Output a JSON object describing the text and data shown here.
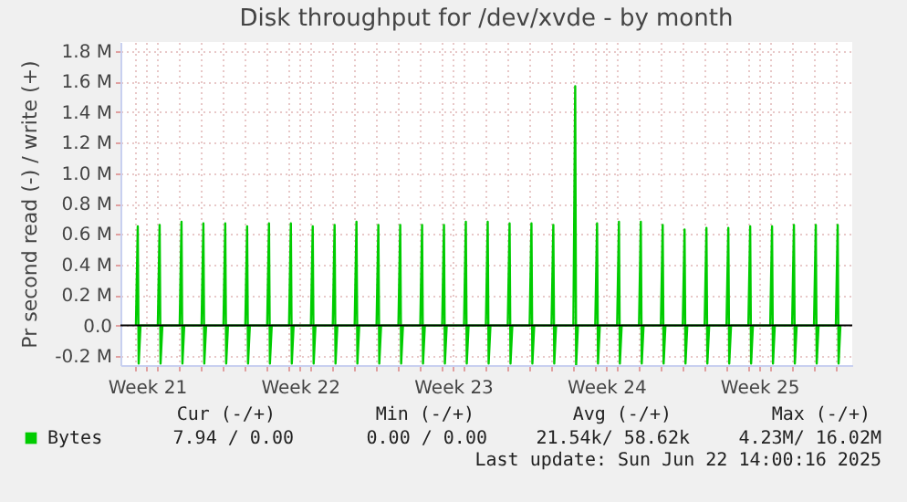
{
  "chart_data": {
    "type": "line",
    "title": "Disk throughput for /dev/xvde - by month",
    "ylabel": "Pr second read (-) / write (+)",
    "xlim": [
      "2025-05-21T07:00",
      "2025-06-23T18:00"
    ],
    "ylim": [
      -260000,
      1860000
    ],
    "xticks": [
      {
        "value": "2025-05-22T12:00",
        "label": "Week 21"
      },
      {
        "value": "2025-05-29T12:00",
        "label": "Week 22"
      },
      {
        "value": "2025-06-05T12:00",
        "label": "Week 23"
      },
      {
        "value": "2025-06-12T12:00",
        "label": "Week 24"
      },
      {
        "value": "2025-06-19T12:00",
        "label": "Week 25"
      },
      {
        "value": "2025-05-22",
        "label": null
      },
      {
        "value": "2025-05-23",
        "label": null
      },
      {
        "value": "2025-05-24",
        "label": null
      },
      {
        "value": "2025-05-25",
        "label": null
      },
      {
        "value": "2025-05-26",
        "label": null
      },
      {
        "value": "2025-05-27",
        "label": null
      },
      {
        "value": "2025-05-28",
        "label": null
      },
      {
        "value": "2025-05-29",
        "label": null
      },
      {
        "value": "2025-05-30",
        "label": null
      },
      {
        "value": "2025-05-31",
        "label": null
      },
      {
        "value": "2025-06-01",
        "label": null
      },
      {
        "value": "2025-06-02",
        "label": null
      },
      {
        "value": "2025-06-03",
        "label": null
      },
      {
        "value": "2025-06-04",
        "label": null
      },
      {
        "value": "2025-06-05",
        "label": null
      },
      {
        "value": "2025-06-06",
        "label": null
      },
      {
        "value": "2025-06-07",
        "label": null
      },
      {
        "value": "2025-06-08",
        "label": null
      },
      {
        "value": "2025-06-09",
        "label": null
      },
      {
        "value": "2025-06-10",
        "label": null
      },
      {
        "value": "2025-06-11",
        "label": null
      },
      {
        "value": "2025-06-12",
        "label": null
      },
      {
        "value": "2025-06-13",
        "label": null
      },
      {
        "value": "2025-06-14",
        "label": null
      },
      {
        "value": "2025-06-15",
        "label": null
      },
      {
        "value": "2025-06-16",
        "label": null
      },
      {
        "value": "2025-06-17",
        "label": null
      },
      {
        "value": "2025-06-18",
        "label": null
      },
      {
        "value": "2025-06-19",
        "label": null
      },
      {
        "value": "2025-06-20",
        "label": null
      },
      {
        "value": "2025-06-21",
        "label": null
      },
      {
        "value": "2025-06-22",
        "label": null
      },
      {
        "value": "2025-06-23",
        "label": null
      }
    ],
    "yticks": [
      {
        "value": -200000,
        "label": "-0.2 M"
      },
      {
        "value": 0,
        "label": "0.0"
      },
      {
        "value": 200000,
        "label": "0.2 M"
      },
      {
        "value": 400000,
        "label": "0.4 M"
      },
      {
        "value": 600000,
        "label": "0.6 M"
      },
      {
        "value": 800000,
        "label": "0.8 M"
      },
      {
        "value": 1000000,
        "label": "1.0 M"
      },
      {
        "value": 1200000,
        "label": "1.2 M"
      },
      {
        "value": 1400000,
        "label": "1.4 M"
      },
      {
        "value": 1600000,
        "label": "1.6 M"
      },
      {
        "value": 1800000,
        "label": "1.8 M"
      }
    ],
    "grid": true,
    "legend": "bottom",
    "line_style": "solid",
    "ref_lines": [
      {
        "axis": "y",
        "value": 0,
        "color": "#000000"
      }
    ],
    "series": [
      {
        "name": "Bytes",
        "color": "#00cc00",
        "x": [
          "2025-05-22T00:00",
          "2025-05-22T02:00",
          "2025-05-22T03:00",
          "2025-05-22T05:00",
          "2025-05-23T00:00",
          "2025-05-23T02:00",
          "2025-05-23T03:00",
          "2025-05-23T05:00",
          "2025-05-24T00:00",
          "2025-05-24T02:00",
          "2025-05-24T03:00",
          "2025-05-24T05:00",
          "2025-05-25T00:00",
          "2025-05-25T02:00",
          "2025-05-25T03:00",
          "2025-05-25T05:00",
          "2025-05-26T00:00",
          "2025-05-26T02:00",
          "2025-05-26T03:00",
          "2025-05-26T05:00",
          "2025-05-27T00:00",
          "2025-05-27T02:00",
          "2025-05-27T03:00",
          "2025-05-27T05:00",
          "2025-05-28T00:00",
          "2025-05-28T02:00",
          "2025-05-28T03:00",
          "2025-05-28T05:00",
          "2025-05-29T00:00",
          "2025-05-29T02:00",
          "2025-05-29T03:00",
          "2025-05-29T05:00",
          "2025-05-30T00:00",
          "2025-05-30T02:00",
          "2025-05-30T03:00",
          "2025-05-30T05:00",
          "2025-05-31T00:00",
          "2025-05-31T02:00",
          "2025-05-31T03:00",
          "2025-05-31T05:00",
          "2025-06-01T00:00",
          "2025-06-01T02:00",
          "2025-06-01T03:00",
          "2025-06-01T05:00",
          "2025-06-02T00:00",
          "2025-06-02T02:00",
          "2025-06-02T03:00",
          "2025-06-02T05:00",
          "2025-06-03T00:00",
          "2025-06-03T02:00",
          "2025-06-03T03:00",
          "2025-06-03T05:00",
          "2025-06-04T00:00",
          "2025-06-04T02:00",
          "2025-06-04T03:00",
          "2025-06-04T05:00",
          "2025-06-05T00:00",
          "2025-06-05T02:00",
          "2025-06-05T03:00",
          "2025-06-05T05:00",
          "2025-06-06T00:00",
          "2025-06-06T02:00",
          "2025-06-06T03:00",
          "2025-06-06T05:00",
          "2025-06-07T00:00",
          "2025-06-07T02:00",
          "2025-06-07T03:00",
          "2025-06-07T05:00",
          "2025-06-08T00:00",
          "2025-06-08T02:00",
          "2025-06-08T03:00",
          "2025-06-08T05:00",
          "2025-06-09T00:00",
          "2025-06-09T02:00",
          "2025-06-09T03:00",
          "2025-06-09T05:00",
          "2025-06-10T00:00",
          "2025-06-10T02:00",
          "2025-06-10T03:00",
          "2025-06-10T05:00",
          "2025-06-11T00:00",
          "2025-06-11T02:00",
          "2025-06-11T03:00",
          "2025-06-11T05:00",
          "2025-06-12T00:00",
          "2025-06-12T02:00",
          "2025-06-12T03:00",
          "2025-06-12T05:00",
          "2025-06-13T00:00",
          "2025-06-13T02:00",
          "2025-06-13T03:00",
          "2025-06-13T05:00",
          "2025-06-14T00:00",
          "2025-06-14T02:00",
          "2025-06-14T03:00",
          "2025-06-14T05:00",
          "2025-06-15T00:00",
          "2025-06-15T02:00",
          "2025-06-15T03:00",
          "2025-06-15T05:00",
          "2025-06-16T00:00",
          "2025-06-16T02:00",
          "2025-06-16T03:00",
          "2025-06-16T05:00",
          "2025-06-17T00:00",
          "2025-06-17T02:00",
          "2025-06-17T03:00",
          "2025-06-17T05:00",
          "2025-06-18T00:00",
          "2025-06-18T02:00",
          "2025-06-18T03:00",
          "2025-06-18T05:00",
          "2025-06-19T00:00",
          "2025-06-19T02:00",
          "2025-06-19T03:00",
          "2025-06-19T05:00",
          "2025-06-20T00:00",
          "2025-06-20T02:00",
          "2025-06-20T03:00",
          "2025-06-20T05:00",
          "2025-06-21T00:00",
          "2025-06-21T02:00",
          "2025-06-21T03:00",
          "2025-06-21T05:00",
          "2025-06-22T00:00",
          "2025-06-22T02:00",
          "2025-06-22T03:00",
          "2025-06-22T05:00",
          "2025-06-23T00:00",
          "2025-06-23T02:00",
          "2025-06-23T03:00",
          "2025-06-23T05:00"
        ],
        "values": [
          0,
          650000,
          -250000,
          0,
          0,
          660000,
          -250000,
          0,
          0,
          680000,
          -250000,
          0,
          0,
          670000,
          -250000,
          0,
          0,
          670000,
          -250000,
          0,
          0,
          650000,
          -250000,
          0,
          0,
          670000,
          -250000,
          0,
          0,
          670000,
          -250000,
          0,
          0,
          650000,
          -250000,
          0,
          0,
          660000,
          -250000,
          0,
          0,
          680000,
          -250000,
          0,
          0,
          660000,
          -250000,
          0,
          0,
          660000,
          -250000,
          0,
          0,
          660000,
          -250000,
          0,
          0,
          660000,
          -250000,
          0,
          0,
          680000,
          -250000,
          0,
          0,
          680000,
          -250000,
          0,
          0,
          670000,
          -250000,
          0,
          0,
          670000,
          -250000,
          0,
          0,
          660000,
          -250000,
          0,
          0,
          1570000,
          -260000,
          0,
          0,
          670000,
          -250000,
          0,
          0,
          680000,
          -250000,
          0,
          0,
          680000,
          -250000,
          0,
          0,
          660000,
          -250000,
          0,
          0,
          630000,
          -250000,
          0,
          0,
          640000,
          -250000,
          0,
          0,
          640000,
          -250000,
          0,
          0,
          650000,
          -250000,
          0,
          0,
          650000,
          -250000,
          0,
          0,
          660000,
          -250000,
          0,
          0,
          660000,
          -250000,
          0,
          0,
          660000,
          -250000,
          0
        ]
      }
    ],
    "annotations": [
      "Cur (-/+)",
      "Min (-/+)",
      "Avg (-/+)",
      "Max (-/+)",
      "7.94 /  0.00",
      "0.00 /  0.00",
      "21.54k/ 58.62k",
      "4.23M/ 16.02M",
      "Last update: Sun Jun 22 14:00:16 2025"
    ]
  }
}
